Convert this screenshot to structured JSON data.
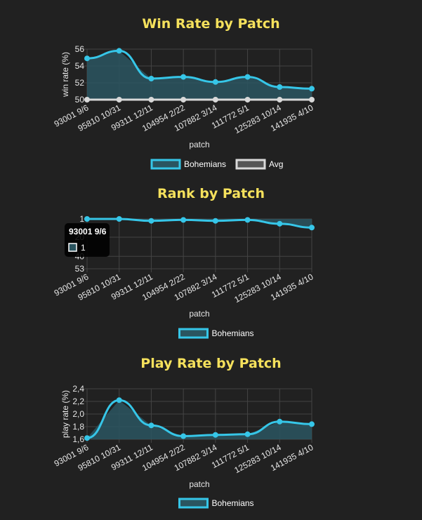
{
  "colors": {
    "accent": "#36c6e8",
    "fill": "#2a5560",
    "avg": "#d9d9d9",
    "title": "#f5e15c",
    "grid": "#444444"
  },
  "chart_data": [
    {
      "type": "line",
      "title": "Win Rate by Patch",
      "xlabel": "patch",
      "ylabel": "win rate (%)",
      "categories": [
        "93001 9/6",
        "95810 10/31",
        "99311 12/11",
        "104954 2/22",
        "107882 3/14",
        "111772 5/1",
        "125283 10/14",
        "141935 4/10"
      ],
      "ylim": [
        50,
        56
      ],
      "yticks": [
        "50",
        "52",
        "54",
        "56"
      ],
      "series": [
        {
          "name": "Bohemians",
          "values": [
            54.9,
            55.8,
            52.5,
            52.7,
            52.1,
            52.7,
            51.5,
            51.3
          ]
        },
        {
          "name": "Avg",
          "values": [
            50,
            50,
            50,
            50,
            50,
            50,
            50,
            50
          ]
        }
      ],
      "legend": "bottom"
    },
    {
      "type": "line",
      "title": "Rank by Patch",
      "xlabel": "patch",
      "ylabel": "",
      "categories": [
        "93001 9/6",
        "95810 10/31",
        "99311 12/11",
        "104954 2/22",
        "107882 3/14",
        "111772 5/1",
        "125283 10/14",
        "141935 4/10"
      ],
      "ylim": [
        1,
        53
      ],
      "y_reversed": true,
      "yticks": [
        "1",
        "20",
        "40",
        "53"
      ],
      "series": [
        {
          "name": "Bohemians",
          "values": [
            1,
            1,
            3,
            2,
            3,
            2,
            6,
            10
          ]
        }
      ],
      "legend": "bottom",
      "tooltip": {
        "title": "93001 9/6",
        "value": "1"
      }
    },
    {
      "type": "line",
      "title": "Play Rate by Patch",
      "xlabel": "patch",
      "ylabel": "play rate (%)",
      "categories": [
        "93001 9/6",
        "95810 10/31",
        "99311 12/11",
        "104954 2/22",
        "107882 3/14",
        "111772 5/1",
        "125283 10/14",
        "141935 4/10"
      ],
      "ylim": [
        1.6,
        2.4
      ],
      "yticks": [
        "1,6",
        "1,8",
        "2,0",
        "2,2",
        "2,4"
      ],
      "series": [
        {
          "name": "Bohemians",
          "values": [
            1.62,
            2.22,
            1.82,
            1.65,
            1.67,
            1.68,
            1.88,
            1.84
          ]
        }
      ],
      "legend": "bottom"
    }
  ]
}
